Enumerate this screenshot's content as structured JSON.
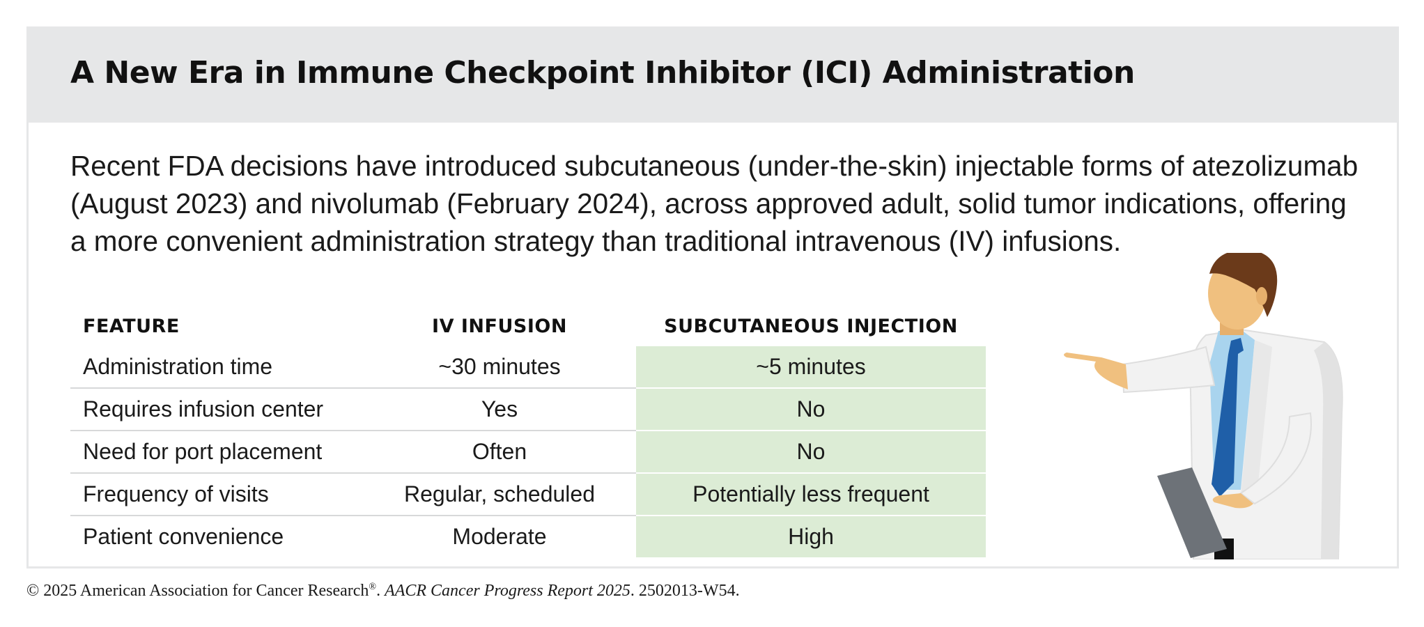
{
  "title": "A New Era in Immune Checkpoint Inhibitor (ICI) Administration",
  "intro_lines": [
    "Recent FDA decisions have introduced subcutaneous (under-the-skin) injectable forms of atezolizumab",
    "(August 2023) and nivolumab (February 2024), across approved adult, solid tumor indications, offering",
    "a more convenient administration strategy than traditional intravenous (IV) infusions."
  ],
  "table": {
    "headers": [
      "FEATURE",
      "IV INFUSION",
      "SUBCUTANEOUS INJECTION"
    ],
    "rows": [
      [
        "Administration time",
        "~30 minutes",
        "~5 minutes"
      ],
      [
        "Requires infusion center",
        "Yes",
        "No"
      ],
      [
        "Need for port placement",
        "Often",
        "No"
      ],
      [
        "Frequency of visits",
        "Regular, scheduled",
        "Potentially less frequent"
      ],
      [
        "Patient convenience",
        "Moderate",
        "High"
      ]
    ]
  },
  "footer": {
    "copyright": "© 2025 American Association for Cancer Research",
    "registered_mark": "®",
    "separator": ". ",
    "report": "AACR Cancer Progress Report 2025",
    "code": ". 2502013-W54."
  },
  "colors": {
    "header_bg": "#e6e7e8",
    "highlight_col": "#dcecd5",
    "lab_coat": "#f2f2f2",
    "tie": "#1f5fa8",
    "shirt": "#a9d4ee",
    "skin": "#f0c07f",
    "hair": "#6b3a1a",
    "clipboard": "#6d7278"
  },
  "illustration": {
    "icon": "doctor-pointing-icon"
  }
}
